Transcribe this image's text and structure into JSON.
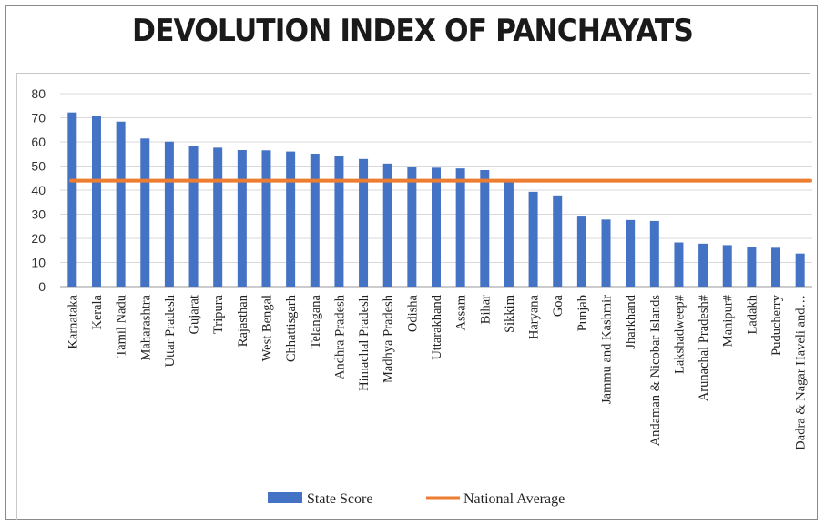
{
  "chart_data": {
    "type": "bar",
    "title": "DEVOLUTION INDEX OF PANCHAYATS",
    "xlabel": "",
    "ylabel": "",
    "ylim": [
      0,
      80
    ],
    "yticks": [
      0,
      10,
      20,
      30,
      40,
      50,
      60,
      70,
      80
    ],
    "grid": true,
    "legend_position": "bottom",
    "categories": [
      "Karnataka",
      "Kerala",
      "Tamil Nadu",
      "Maharashtra",
      "Uttar Pradesh",
      "Gujarat",
      "Tripura",
      "Rajasthan",
      "West Bengal",
      "Chhattisgarh",
      "Telangana",
      "Andhra Pradesh",
      "Himachal Pradesh",
      "Madhya Pradesh",
      "Odisha",
      "Uttarakhand",
      "Assam",
      "Bihar",
      "Sikkim",
      "Haryana",
      "Goa",
      "Punjab",
      "Jammu and Kashmir",
      "Jharkhand",
      "Andaman & Nicobar Islands",
      "Lakshadweep#",
      "Arunachal Pradesh#",
      "Manipur#",
      "Ladakh",
      "Puducherry",
      "Dadra & Nagar Haveli and…"
    ],
    "series": [
      {
        "name": "State Score",
        "type": "bar",
        "color": "#4472C4",
        "values": [
          72.2,
          70.8,
          68.4,
          61.4,
          60.1,
          58.3,
          57.6,
          56.6,
          56.5,
          56.0,
          55.1,
          54.3,
          52.9,
          51.0,
          49.8,
          49.3,
          49.0,
          48.3,
          43.3,
          39.3,
          37.8,
          29.4,
          27.8,
          27.6,
          27.2,
          18.3,
          17.8,
          17.2,
          16.3,
          16.1,
          13.7
        ]
      },
      {
        "name": "National Average",
        "type": "line",
        "color": "#ED7D31",
        "value": 43.9
      }
    ]
  }
}
